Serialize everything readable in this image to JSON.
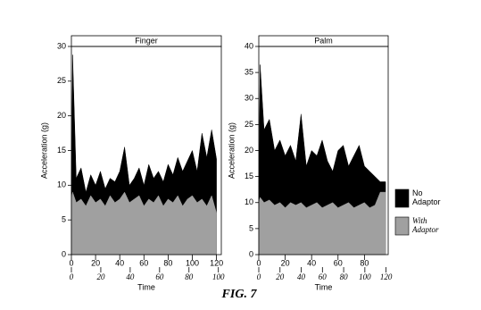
{
  "chart_data": [
    {
      "type": "area",
      "title": "Finger",
      "xlabel": "Time",
      "ylabel": "Acceleration (g)",
      "xlim": [
        0,
        124
      ],
      "xticks": [
        0,
        20,
        40,
        60,
        80,
        100,
        120
      ],
      "x2lim": [
        0,
        102
      ],
      "x2ticks": [
        0,
        20,
        40,
        60,
        80,
        100
      ],
      "ylim": [
        0,
        30
      ],
      "yticks": [
        0,
        5,
        10,
        15,
        20,
        25,
        30
      ],
      "x": [
        0,
        1,
        4,
        8,
        12,
        16,
        20,
        24,
        28,
        32,
        36,
        40,
        44,
        48,
        52,
        56,
        60,
        64,
        68,
        72,
        76,
        80,
        84,
        88,
        92,
        96,
        100,
        104,
        108,
        112,
        116,
        120
      ],
      "series": [
        {
          "color": "#000000",
          "values": [
            10,
            28.8,
            11,
            12.5,
            9,
            11.5,
            10,
            12,
            9.5,
            11,
            10.5,
            12,
            15.5,
            10,
            11,
            12.5,
            10,
            13,
            11,
            12,
            10.5,
            13,
            11.5,
            14,
            12,
            13.5,
            15,
            12,
            17.5,
            14,
            18,
            13.8
          ]
        },
        {
          "color": "#a0a0a0",
          "values": [
            8,
            9,
            7.5,
            8,
            7,
            8.5,
            7.5,
            8,
            7,
            8.5,
            7.5,
            8,
            9,
            7.5,
            8,
            8.5,
            7,
            8,
            7.5,
            8.5,
            7,
            8,
            7.5,
            8.5,
            7,
            8,
            8.5,
            7.5,
            8,
            7,
            8.5,
            6
          ]
        }
      ]
    },
    {
      "type": "area",
      "title": "Palm",
      "xlabel": "Time",
      "ylabel": "Acceleration (g)",
      "xlim": [
        0,
        98
      ],
      "xticks": [
        0,
        20,
        40,
        60,
        80
      ],
      "x2lim": [
        0,
        122
      ],
      "x2ticks": [
        0,
        20,
        40,
        60,
        80,
        100,
        120
      ],
      "ylim": [
        0,
        40
      ],
      "yticks": [
        0,
        5,
        10,
        15,
        20,
        25,
        30,
        35,
        40
      ],
      "x": [
        0,
        1,
        4,
        8,
        12,
        16,
        20,
        24,
        28,
        32,
        36,
        40,
        44,
        48,
        52,
        56,
        60,
        64,
        68,
        72,
        76,
        80,
        84,
        88,
        92,
        96
      ],
      "series": [
        {
          "name": "No Adaptor",
          "color": "#000000",
          "values": [
            13,
            36.5,
            24,
            26,
            20,
            22,
            19,
            21,
            18,
            27,
            17,
            20,
            19,
            22,
            18,
            16,
            20,
            21,
            17,
            19,
            21,
            17,
            16,
            15,
            14,
            14
          ]
        },
        {
          "name": "With Adaptor",
          "color": "#a0a0a0",
          "values": [
            10,
            11,
            10,
            10.5,
            9.5,
            10,
            9,
            10,
            9.5,
            10,
            9,
            9.5,
            10,
            9,
            9.5,
            10,
            9,
            9.5,
            10,
            9,
            9.5,
            10,
            9,
            9.5,
            12,
            12
          ]
        }
      ]
    }
  ],
  "figure_caption": "FIG. 7"
}
